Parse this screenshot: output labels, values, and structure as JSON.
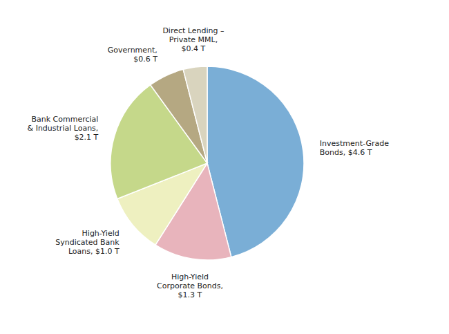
{
  "chart_data": {
    "type": "pie",
    "categories": [
      "Investment-Grade\nBonds, $4.6 T",
      "High-Yield\nCorporate Bonds,\n$1.3 T",
      "High-Yield\nSyndicated Bank\nLoans, $1.0 T",
      "Bank Commercial\n& Industrial Loans,\n$2.1 T",
      "Government,\n$0.6 T",
      "Direct Lending –\nPrivate MML,\n$0.4 T"
    ],
    "values": [
      4.6,
      1.3,
      1.0,
      2.1,
      0.6,
      0.4
    ],
    "colors": [
      "#7aaed6",
      "#e8b4bc",
      "#eef0c0",
      "#c5d88a",
      "#b5a882",
      "#d9d4be"
    ]
  }
}
